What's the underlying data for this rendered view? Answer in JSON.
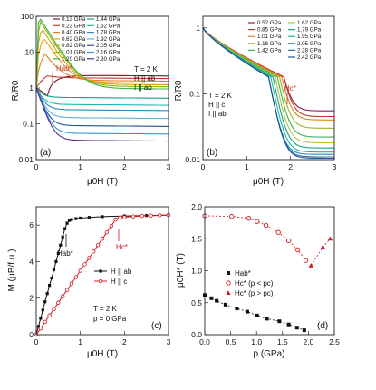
{
  "chart_data": [
    {
      "panel": "(a)",
      "type": "line",
      "xlabel": "μ0H (T)",
      "ylabel": "R/R0",
      "xlim": [
        0,
        3
      ],
      "ylim": [
        0.01,
        100
      ],
      "yscale": "log",
      "xticks": [
        "0",
        "1",
        "2",
        "3"
      ],
      "yticks": [
        "0.01",
        "0.1",
        "1",
        "10",
        "100"
      ],
      "conditions": [
        "T = 2 K",
        "H || ab",
        "I || ab"
      ],
      "annotation": "Hab*",
      "series": [
        {
          "name": "0.13 GPa",
          "color": "#7a1f1f",
          "peak": 0.6,
          "peak_x": 0.25,
          "high": 2.3
        },
        {
          "name": "0.23 GPa",
          "color": "#c0392b",
          "peak": 2.2,
          "peak_x": 0.25,
          "high": 1.95
        },
        {
          "name": "0.40 GPa",
          "color": "#e67e22",
          "peak": 9,
          "peak_x": 0.2,
          "high": 1.65
        },
        {
          "name": "0.62 GPa",
          "color": "#f39c12",
          "peak": 25,
          "peak_x": 0.17,
          "high": 1.45
        },
        {
          "name": "0.82 GPa",
          "color": "#c8a415",
          "peak": 45,
          "peak_x": 0.13,
          "high": 1.3
        },
        {
          "name": "1.01 GPa",
          "color": "#8db600",
          "peak": 70,
          "peak_x": 0.1,
          "high": 1.15
        },
        {
          "name": "1.20 GPa",
          "color": "#3cb44b",
          "peak": 95,
          "peak_x": 0.07,
          "high": 1.0
        },
        {
          "name": "1.44 GPa",
          "color": "#16a085",
          "high": 0.55
        },
        {
          "name": "1.62 GPa",
          "color": "#1abc9c",
          "high": 0.35
        },
        {
          "name": "1.78 GPa",
          "color": "#2e86c1",
          "high": 0.25
        },
        {
          "name": "1.92 GPa",
          "color": "#5dade2",
          "high": 0.15
        },
        {
          "name": "2.05 GPa",
          "color": "#1f4e9c",
          "high": 0.09
        },
        {
          "name": "2.16 GPa",
          "color": "#3498db",
          "high": 0.055
        },
        {
          "name": "2.30 GPa",
          "color": "#5b2c8f",
          "high": 0.035
        }
      ]
    },
    {
      "panel": "(b)",
      "type": "line",
      "xlabel": "μ0H (T)",
      "ylabel": "R/R0",
      "xlim": [
        0,
        3
      ],
      "ylim": [
        0.01,
        1.5
      ],
      "yscale": "log",
      "xticks": [
        "0",
        "1",
        "2",
        "3"
      ],
      "yticks": [
        "0.01",
        "0.1",
        "1"
      ],
      "conditions": [
        "T = 2 K",
        "H || c",
        "I || ab"
      ],
      "annotation": "Hc*",
      "series": [
        {
          "name": "0.52 GPa",
          "color": "#8e1b5a",
          "hc": 1.85,
          "low": 0.055
        },
        {
          "name": "0.85 GPa",
          "color": "#c0392b",
          "hc": 1.85,
          "low": 0.045
        },
        {
          "name": "1.01 GPa",
          "color": "#e67e22",
          "hc": 1.8,
          "low": 0.04
        },
        {
          "name": "1.18 GPa",
          "color": "#a0b81a",
          "hc": 1.75,
          "low": 0.03
        },
        {
          "name": "1.42 GPa",
          "color": "#3cb44b",
          "hc": 1.7,
          "low": 0.022
        },
        {
          "name": "1.62 GPa",
          "color": "#b8c23a",
          "hc": 1.65,
          "low": 0.018
        },
        {
          "name": "1.79 GPa",
          "color": "#16a085",
          "hc": 1.6,
          "low": 0.015
        },
        {
          "name": "1.95 GPa",
          "color": "#1abc9c",
          "hc": 1.55,
          "low": 0.013
        },
        {
          "name": "2.05 GPa",
          "color": "#2e86c1",
          "hc": 1.5,
          "low": 0.012
        },
        {
          "name": "2.28 GPa",
          "color": "#2874a6",
          "hc": 1.5,
          "low": 0.011
        },
        {
          "name": "2.42 GPa",
          "color": "#1f4e9c",
          "hc": 1.5,
          "low": 0.0105
        }
      ]
    },
    {
      "panel": "(c)",
      "type": "line",
      "xlabel": "μ0H (T)",
      "ylabel": "M (μB/f.u.)",
      "xlim": [
        0,
        3
      ],
      "ylim": [
        0,
        7
      ],
      "xticks": [
        "0",
        "1",
        "2",
        "3"
      ],
      "yticks": [
        "0",
        "2",
        "4",
        "6"
      ],
      "conditions": [
        "T = 2 K",
        "p = 0 GPa"
      ],
      "annotations": [
        "Hab*",
        "Hc*"
      ],
      "series": [
        {
          "name": "H || ab",
          "color": "#111111",
          "marker": "square-filled",
          "x": [
            0,
            0.05,
            0.1,
            0.15,
            0.2,
            0.25,
            0.3,
            0.35,
            0.4,
            0.45,
            0.5,
            0.55,
            0.6,
            0.65,
            0.7,
            0.75,
            0.8,
            0.9,
            1.0,
            1.2,
            1.5,
            2.0,
            2.5,
            3.0
          ],
          "y": [
            0,
            0.45,
            0.9,
            1.35,
            1.8,
            2.25,
            2.7,
            3.1,
            3.55,
            4.0,
            4.45,
            4.9,
            5.35,
            5.8,
            6.1,
            6.25,
            6.3,
            6.35,
            6.38,
            6.42,
            6.46,
            6.5,
            6.52,
            6.55
          ]
        },
        {
          "name": "H || c",
          "color": "#d0191e",
          "marker": "circle-open",
          "x": [
            0,
            0.1,
            0.2,
            0.3,
            0.4,
            0.5,
            0.6,
            0.7,
            0.8,
            0.9,
            1.0,
            1.1,
            1.2,
            1.3,
            1.4,
            1.5,
            1.6,
            1.7,
            1.8,
            1.9,
            2.0,
            2.2,
            2.4,
            2.6,
            2.8,
            3.0
          ],
          "y": [
            0,
            0.34,
            0.7,
            1.05,
            1.4,
            1.75,
            2.1,
            2.45,
            2.8,
            3.15,
            3.5,
            3.85,
            4.2,
            4.55,
            4.9,
            5.25,
            5.6,
            5.95,
            6.3,
            6.4,
            6.43,
            6.47,
            6.5,
            6.52,
            6.53,
            6.55
          ]
        }
      ]
    },
    {
      "panel": "(d)",
      "type": "scatter",
      "xlabel": "p (GPa)",
      "ylabel": "μ0H* (T)",
      "xlim": [
        0,
        2.5
      ],
      "ylim": [
        0,
        2
      ],
      "xticks": [
        "0.0",
        "0.5",
        "1.0",
        "1.5",
        "2.0",
        "2.5"
      ],
      "yticks": [
        "0.0",
        "0.5",
        "1.0",
        "1.5",
        "2.0"
      ],
      "series": [
        {
          "name": "Hab*",
          "color": "#111111",
          "marker": "square-filled",
          "x": [
            0,
            0.13,
            0.23,
            0.4,
            0.62,
            0.82,
            1.01,
            1.2,
            1.44,
            1.62,
            1.78,
            1.92
          ],
          "y": [
            0.62,
            0.57,
            0.53,
            0.47,
            0.41,
            0.36,
            0.3,
            0.25,
            0.21,
            0.16,
            0.11,
            0.07
          ]
        },
        {
          "name": "Hc* (p < pc)",
          "color": "#d0191e",
          "marker": "circle-open",
          "x": [
            0,
            0.52,
            0.85,
            1.01,
            1.18,
            1.42,
            1.62,
            1.79,
            1.95
          ],
          "y": [
            1.86,
            1.85,
            1.82,
            1.77,
            1.71,
            1.6,
            1.47,
            1.33,
            1.16
          ]
        },
        {
          "name": "Hc* (p > pc)",
          "color": "#d0191e",
          "marker": "triangle-filled",
          "x": [
            2.05,
            2.28,
            2.42
          ],
          "y": [
            1.08,
            1.37,
            1.5
          ]
        }
      ]
    }
  ]
}
